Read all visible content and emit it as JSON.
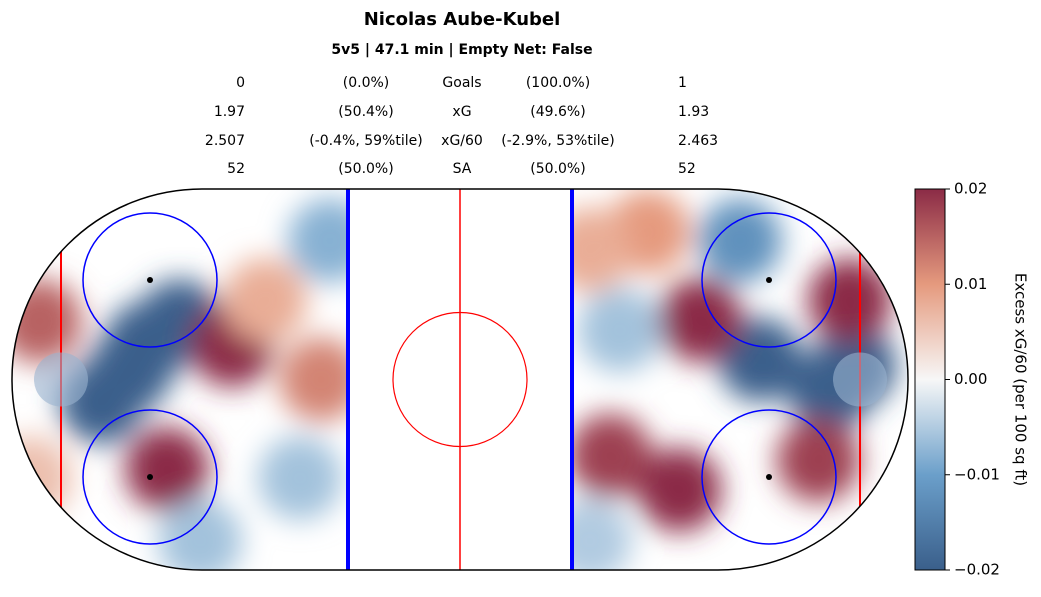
{
  "chart_data": {
    "type": "heatmap",
    "title": "Nicolas Aube-Kubel",
    "subtitle": "5v5 | 47.1 min | Empty Net: False",
    "stats": [
      [
        "0",
        "(0.0%)",
        "Goals",
        "(100.0%)",
        "1"
      ],
      [
        "1.97",
        "(50.4%)",
        "xG",
        "(49.6%)",
        "1.93"
      ],
      [
        "2.507",
        "(-0.4%, 59%tile)",
        "xG/60",
        "(-2.9%, 53%tile)",
        "2.463"
      ],
      [
        "52",
        "(50.0%)",
        "SA",
        "(50.0%)",
        "52"
      ]
    ],
    "xlim": [
      -100,
      100
    ],
    "ylim": [
      -42.5,
      42.5
    ],
    "x": [
      -73.7,
      -80,
      -62.5,
      -70,
      -65.4,
      -50.9,
      -93.8,
      -31,
      -43.5,
      -29,
      -58,
      -35.7,
      -96,
      82.6,
      88,
      67,
      62.5,
      87,
      53.6,
      33.5,
      49,
      80,
      42,
      29,
      35.7,
      29
    ],
    "y": [
      2,
      -5,
      13,
      8,
      -20,
      7.7,
      13,
      0,
      17.7,
      31,
      -36,
      -22,
      -22,
      -2.3,
      3,
      4.4,
      31,
      17.7,
      13.3,
      -17,
      -24.6,
      -18,
      33,
      29,
      11,
      -36
    ],
    "values": [
      -0.02,
      -0.02,
      -0.02,
      -0.02,
      0.02,
      0.02,
      0.015,
      0.012,
      0.008,
      -0.008,
      -0.006,
      -0.006,
      0.006,
      -0.02,
      -0.02,
      -0.02,
      -0.012,
      0.02,
      0.02,
      0.018,
      0.02,
      0.018,
      0.01,
      0.008,
      -0.006,
      -0.005
    ],
    "clim": [
      -0.02,
      0.02
    ],
    "colormap": [
      "#3a5f8b",
      "#6b9fca",
      "#f7f7f7",
      "#e59a7e",
      "#8b2b46"
    ],
    "colorbar_label": "Excess xG/60 (per 100 sq ft)",
    "cticks": [
      0.02,
      0.01,
      {
        "value": 0,
        "label": "0.00"
      },
      {
        "value": -0.01,
        "label": "−0.01"
      },
      {
        "value": -0.02,
        "label": "−0.02"
      }
    ]
  }
}
